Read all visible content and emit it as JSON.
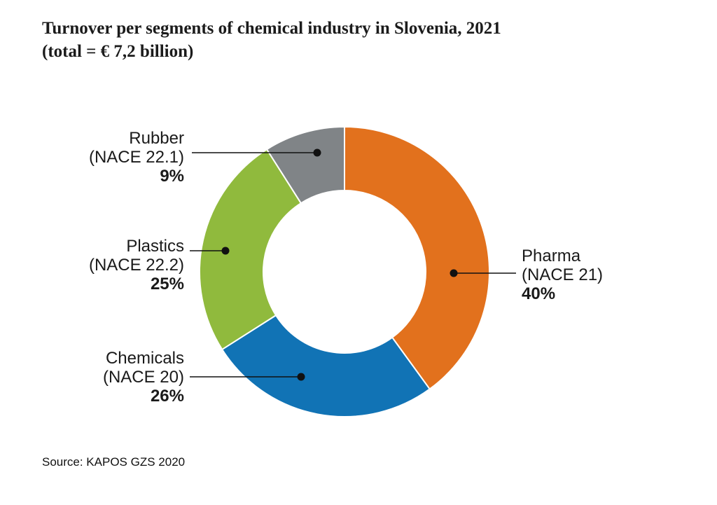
{
  "title": {
    "line1": "Turnover per segments of chemical industry in Slovenia, 2021",
    "line2": "(total = € 7,2 billion)"
  },
  "source": "Source: KAPOS GZS 2020",
  "chart_data": {
    "type": "pie",
    "subtype": "donut",
    "title": "Turnover per segments of chemical industry in Slovenia, 2021 (total = € 7,2 billion)",
    "total_label": "€ 7,2 billion",
    "unit": "%",
    "start_angle_deg": 0,
    "direction": "clockwise",
    "legend_position": "none",
    "grid": false,
    "segments": [
      {
        "label": "Pharma",
        "code": "(NACE 21)",
        "value": 40,
        "pct_label": "40%",
        "color": "#e2711d",
        "label_side": "right"
      },
      {
        "label": "Chemicals",
        "code": "(NACE 20)",
        "value": 26,
        "pct_label": "26%",
        "color": "#1173b5",
        "label_side": "left"
      },
      {
        "label": "Plastics",
        "code": "(NACE 22.2)",
        "value": 25,
        "pct_label": "25%",
        "color": "#90ba3d",
        "label_side": "left"
      },
      {
        "label": "Rubber",
        "code": "(NACE 22.1)",
        "value": 9,
        "pct_label": "9%",
        "color": "#808487",
        "label_side": "left"
      }
    ],
    "leader_line_color": "#111111"
  }
}
